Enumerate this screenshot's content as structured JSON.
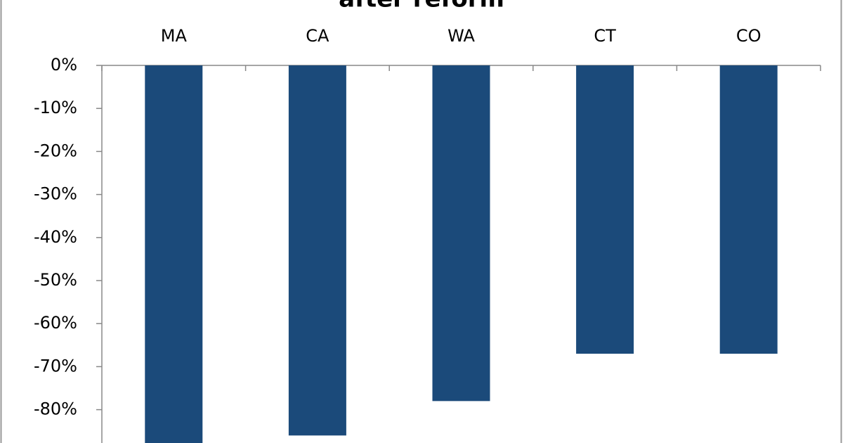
{
  "chart_data": {
    "type": "bar",
    "title": "after reform",
    "categories": [
      "MA",
      "CA",
      "WA",
      "CT",
      "CO"
    ],
    "values": [
      -90,
      -86,
      -78,
      -67,
      -67
    ],
    "color": "#1b4a7a",
    "ylim": [
      -100,
      0
    ],
    "yticks": [
      {
        "value": 0,
        "label": "0%"
      },
      {
        "value": -10,
        "label": "-10%"
      },
      {
        "value": -20,
        "label": "-20%"
      },
      {
        "value": -30,
        "label": "-30%"
      },
      {
        "value": -40,
        "label": "-40%"
      },
      {
        "value": -50,
        "label": "-50%"
      },
      {
        "value": -60,
        "label": "-60%"
      },
      {
        "value": -70,
        "label": "-70%"
      },
      {
        "value": -80,
        "label": "-80%"
      }
    ]
  }
}
